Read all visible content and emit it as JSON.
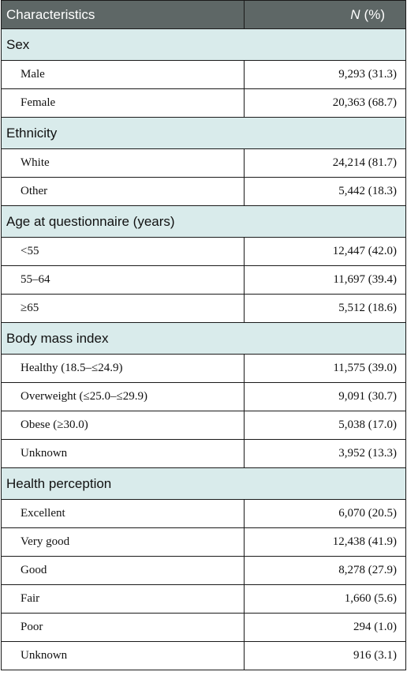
{
  "header": {
    "col1": "Characteristics",
    "col2_n": "N",
    "col2_pct": "(%)"
  },
  "sections": [
    {
      "title": "Sex",
      "rows": [
        {
          "label": "Male",
          "value": "9,293 (31.3)"
        },
        {
          "label": "Female",
          "value": "20,363 (68.7)"
        }
      ]
    },
    {
      "title": "Ethnicity",
      "rows": [
        {
          "label": "White",
          "value": "24,214 (81.7)"
        },
        {
          "label": "Other",
          "value": "5,442 (18.3)"
        }
      ]
    },
    {
      "title": "Age at questionnaire (years)",
      "rows": [
        {
          "label": "<55",
          "value": "12,447 (42.0)"
        },
        {
          "label": "55–64",
          "value": "11,697 (39.4)"
        },
        {
          "label": "≥65",
          "value": "5,512 (18.6)"
        }
      ]
    },
    {
      "title": "Body mass index",
      "rows": [
        {
          "label": "Healthy (18.5–≤24.9)",
          "value": "11,575 (39.0)"
        },
        {
          "label": "Overweight (≤25.0–≤29.9)",
          "value": "9,091 (30.7)"
        },
        {
          "label": "Obese (≥30.0)",
          "value": "5,038 (17.0)"
        },
        {
          "label": "Unknown",
          "value": "3,952 (13.3)"
        }
      ]
    },
    {
      "title": "Health perception",
      "rows": [
        {
          "label": "Excellent",
          "value": "6,070 (20.5)"
        },
        {
          "label": "Very good",
          "value": "12,438 (41.9)"
        },
        {
          "label": "Good",
          "value": "8,278 (27.9)"
        },
        {
          "label": "Fair",
          "value": "1,660 (5.6)"
        },
        {
          "label": "Poor",
          "value": "294 (1.0)"
        },
        {
          "label": "Unknown",
          "value": "916 (3.1)"
        }
      ]
    }
  ]
}
